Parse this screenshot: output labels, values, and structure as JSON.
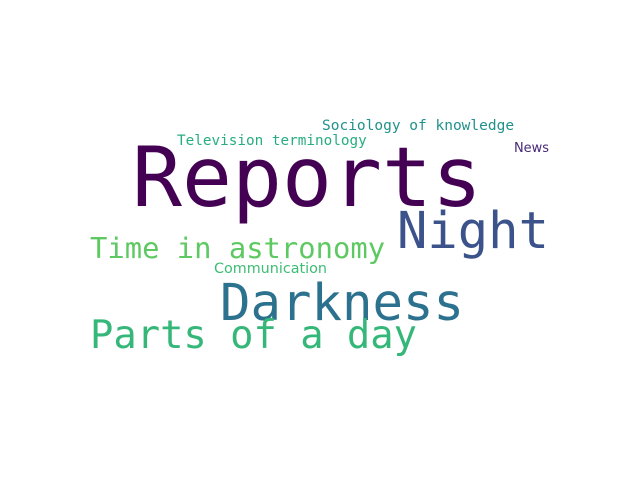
{
  "words": [
    {
      "text": "Reports",
      "color": "#440154"
    },
    {
      "text": "Night",
      "color": "#3b528b"
    },
    {
      "text": "Darkness",
      "color": "#2c728e"
    },
    {
      "text": "Time in astronomy",
      "color": "#5ec962"
    },
    {
      "text": "Parts of a day",
      "color": "#35b779"
    },
    {
      "text": "Sociology of knowledge",
      "color": "#21918c"
    },
    {
      "text": "Television terminology",
      "color": "#27ad81"
    },
    {
      "text": "News",
      "color": "#482878"
    },
    {
      "text": "Communication",
      "color": "#3dbc74"
    }
  ]
}
